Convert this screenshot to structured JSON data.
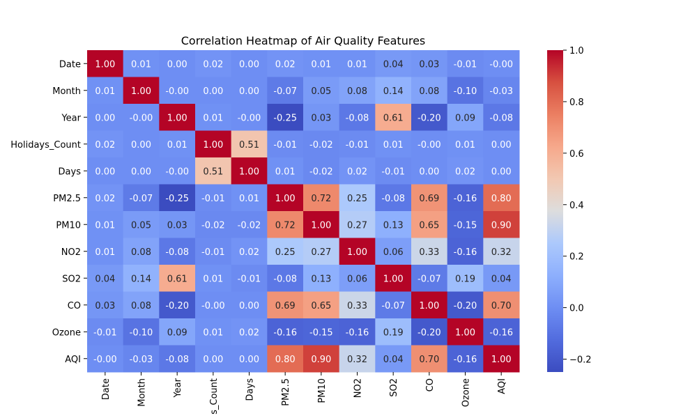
{
  "chart_data": {
    "type": "heatmap",
    "title": "Correlation Heatmap of Air Quality Features",
    "xlabel": "",
    "ylabel": "",
    "x_categories": [
      "Date",
      "Month",
      "Year",
      "Holidays_Count",
      "Days",
      "PM2.5",
      "PM10",
      "NO2",
      "SO2",
      "CO",
      "Ozone",
      "AQI"
    ],
    "x_tick_labels": [
      "Date",
      "Month",
      "Year",
      "s_Count",
      "Days",
      "PM2.5",
      "PM10",
      "NO2",
      "SO2",
      "CO",
      "Ozone",
      "AQI"
    ],
    "y_categories": [
      "Date",
      "Month",
      "Year",
      "Holidays_Count",
      "Days",
      "PM2.5",
      "PM10",
      "NO2",
      "SO2",
      "CO",
      "Ozone",
      "AQI"
    ],
    "values": [
      [
        1.0,
        0.01,
        0.0,
        0.02,
        0.0,
        0.02,
        0.01,
        0.01,
        0.04,
        0.03,
        -0.01,
        -0.0
      ],
      [
        0.01,
        1.0,
        -0.0,
        0.0,
        0.0,
        -0.07,
        0.05,
        0.08,
        0.14,
        0.08,
        -0.1,
        -0.03
      ],
      [
        0.0,
        -0.0,
        1.0,
        0.01,
        -0.0,
        -0.25,
        0.03,
        -0.08,
        0.61,
        -0.2,
        0.09,
        -0.08
      ],
      [
        0.02,
        0.0,
        0.01,
        1.0,
        0.51,
        -0.01,
        -0.02,
        -0.01,
        0.01,
        -0.0,
        0.01,
        0.0
      ],
      [
        0.0,
        0.0,
        -0.0,
        0.51,
        1.0,
        0.01,
        -0.02,
        0.02,
        -0.01,
        0.0,
        0.02,
        0.0
      ],
      [
        0.02,
        -0.07,
        -0.25,
        -0.01,
        0.01,
        1.0,
        0.72,
        0.25,
        -0.08,
        0.69,
        -0.16,
        0.8
      ],
      [
        0.01,
        0.05,
        0.03,
        -0.02,
        -0.02,
        0.72,
        1.0,
        0.27,
        0.13,
        0.65,
        -0.15,
        0.9
      ],
      [
        0.01,
        0.08,
        -0.08,
        -0.01,
        0.02,
        0.25,
        0.27,
        1.0,
        0.06,
        0.33,
        -0.16,
        0.32
      ],
      [
        0.04,
        0.14,
        0.61,
        0.01,
        -0.01,
        -0.08,
        0.13,
        0.06,
        1.0,
        -0.07,
        0.19,
        0.04
      ],
      [
        0.03,
        0.08,
        -0.2,
        -0.0,
        0.0,
        0.69,
        0.65,
        0.33,
        -0.07,
        1.0,
        -0.2,
        0.7
      ],
      [
        -0.01,
        -0.1,
        0.09,
        0.01,
        0.02,
        -0.16,
        -0.15,
        -0.16,
        0.19,
        -0.2,
        1.0,
        -0.16
      ],
      [
        -0.0,
        -0.03,
        -0.08,
        0.0,
        0.0,
        0.8,
        0.9,
        0.32,
        0.04,
        0.7,
        -0.16,
        1.0
      ]
    ],
    "value_format": "0.00",
    "colormap": "coolwarm",
    "colorbar": {
      "range": [
        -0.25,
        1.0
      ],
      "ticks": [
        -0.2,
        0.0,
        0.2,
        0.4,
        0.6,
        0.8,
        1.0
      ],
      "tick_labels": [
        "−0.2",
        "0.0",
        "0.2",
        "0.4",
        "0.6",
        "0.8",
        "1.0"
      ],
      "placement": "right"
    }
  }
}
